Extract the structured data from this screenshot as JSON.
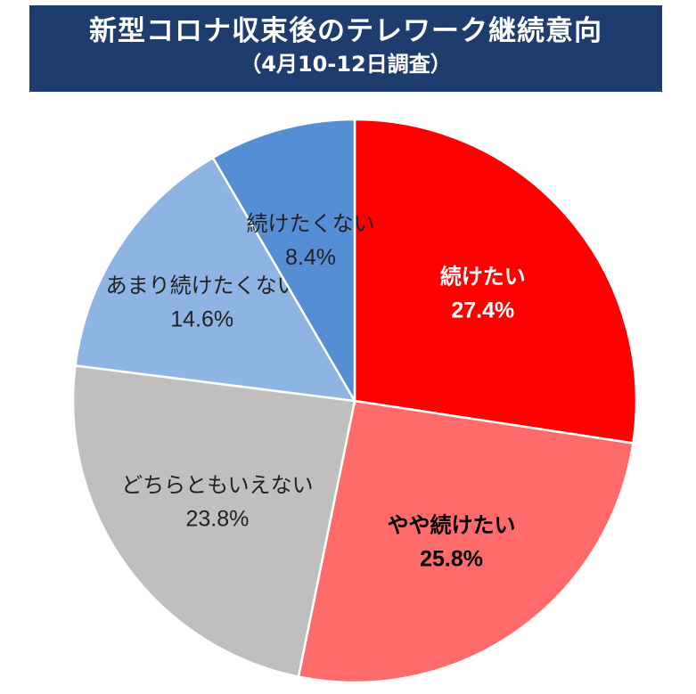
{
  "chart_data": {
    "type": "pie",
    "title": "新型コロナ収束後のテレワーク継続意向",
    "subtitle": "（4月10-12日調査）",
    "slices": [
      {
        "label": "続けたい",
        "value_text": "27.4%",
        "value": 27.4,
        "color": "#ff0000",
        "text_color": "#ffffff",
        "bold": true
      },
      {
        "label": "やや続けたい",
        "value_text": "25.8%",
        "value": 25.8,
        "color": "#ff6b6b",
        "text_color": "#000000",
        "bold": true
      },
      {
        "label": "どちらともいえない",
        "value_text": "23.8%",
        "value": 23.8,
        "color": "#bfbfbf",
        "text_color": "#222222",
        "bold": false
      },
      {
        "label": "あまり続けたくない",
        "value_text": "14.6%",
        "value": 14.6,
        "color": "#8eb4e3",
        "text_color": "#222222",
        "bold": false
      },
      {
        "label": "続けたくない",
        "value_text": "8.4%",
        "value": 8.4,
        "color": "#558ed5",
        "text_color": "#222222",
        "bold": false
      }
    ]
  }
}
